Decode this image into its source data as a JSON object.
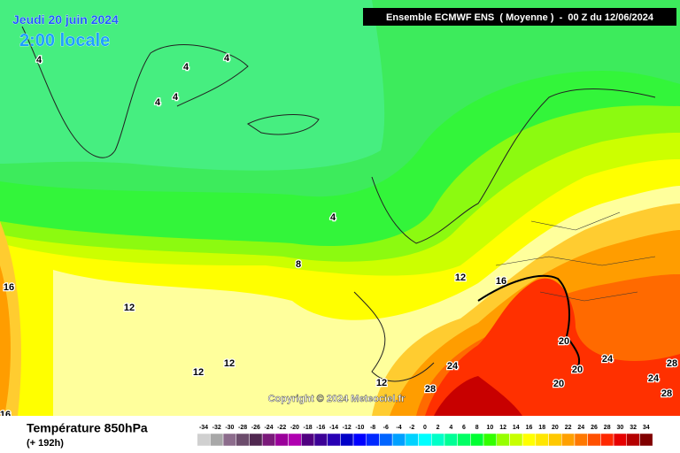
{
  "header": {
    "date": "Jeudi 20 juin 2024",
    "time": "2:00 locale",
    "model": "Ensemble ECMWF ENS  ( Moyenne )  -  00 Z du 12/06/2024"
  },
  "footer": {
    "title": "Température 850hPa",
    "lead": "(+ 192h)",
    "copyright": "Copyright © 2024 Meteociel.fr"
  },
  "contour_labels": [
    4,
    4,
    4,
    4,
    4,
    4,
    8,
    12,
    12,
    12,
    12,
    12,
    16,
    16,
    16,
    20,
    20,
    20,
    24,
    24,
    24,
    28,
    28,
    28
  ],
  "legend": {
    "labels": [
      -34,
      -32,
      -30,
      -28,
      -26,
      -24,
      -22,
      -20,
      -18,
      -16,
      -14,
      -12,
      -10,
      -8,
      -6,
      -4,
      -2,
      0,
      2,
      4,
      6,
      8,
      10,
      12,
      14,
      16,
      18,
      20,
      22,
      24,
      26,
      28,
      30,
      32,
      34
    ],
    "colors": [
      "#d0d0d0",
      "#a8a8a8",
      "#8c6c8c",
      "#6c4c6c",
      "#502850",
      "#7a1a7a",
      "#9a009a",
      "#b000b0",
      "#500080",
      "#3c0096",
      "#2800b4",
      "#0000c8",
      "#0000ff",
      "#0028ff",
      "#0064ff",
      "#00a0ff",
      "#00d2ff",
      "#00ffff",
      "#00ffc8",
      "#00ff96",
      "#00ff64",
      "#00ff32",
      "#32ff00",
      "#96ff00",
      "#c8ff00",
      "#ffff00",
      "#ffe600",
      "#ffc800",
      "#ffa000",
      "#ff7800",
      "#ff5000",
      "#ff2800",
      "#e60000",
      "#b40000",
      "#800000"
    ]
  }
}
